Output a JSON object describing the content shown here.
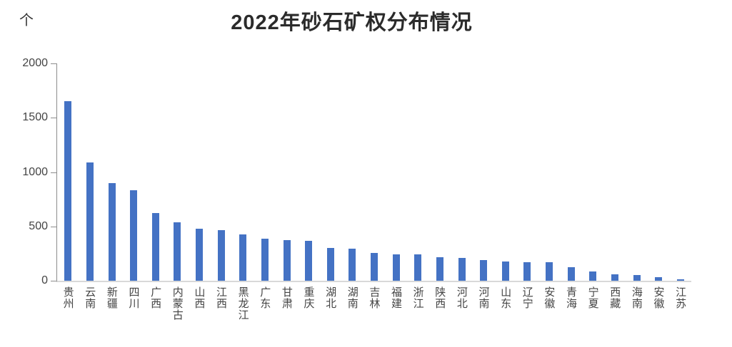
{
  "chart_data": {
    "type": "bar",
    "title": "2022年砂石矿权分布情况",
    "unit": "个",
    "xlabel": "",
    "ylabel": "",
    "categories": [
      "贵州",
      "云南",
      "新疆",
      "四川",
      "广西",
      "内蒙古",
      "山西",
      "江西",
      "黑龙江",
      "广东",
      "甘肃",
      "重庆",
      "湖北",
      "湖南",
      "吉林",
      "福建",
      "浙江",
      "陕西",
      "河北",
      "河南",
      "山东",
      "辽宁",
      "安徽",
      "青海",
      "宁夏",
      "西藏",
      "海南",
      "安徽",
      "江苏"
    ],
    "values": [
      1655,
      1090,
      900,
      835,
      625,
      537,
      477,
      465,
      424,
      388,
      373,
      366,
      302,
      296,
      255,
      243,
      240,
      214,
      208,
      188,
      176,
      172,
      170,
      125,
      88,
      58,
      52,
      33,
      14
    ],
    "ylim": [
      0,
      2000
    ],
    "yticks": [
      0,
      500,
      1000,
      1500,
      2000
    ],
    "grid": false,
    "legend": "none",
    "bar_color": "#4472C4",
    "axis_line_color": "#8c8c8c",
    "baseline_color": "#d9d9d9",
    "label_color": "#444444",
    "title_color": "#2b2b2b"
  }
}
